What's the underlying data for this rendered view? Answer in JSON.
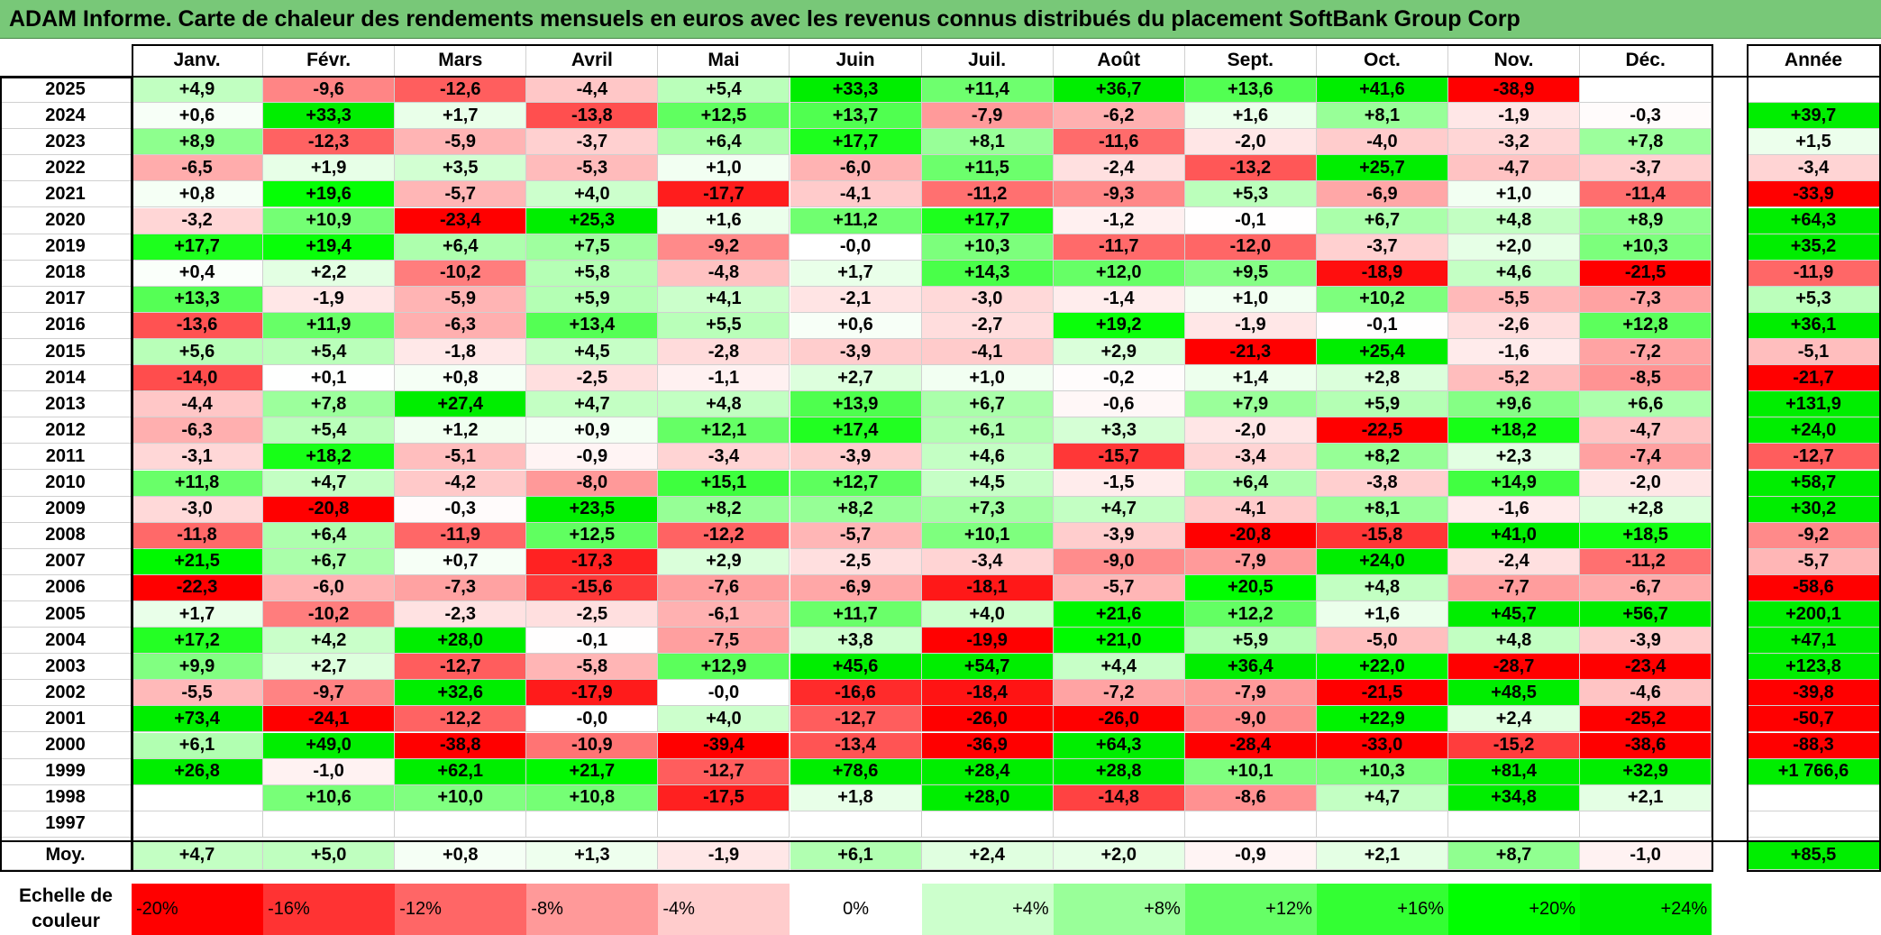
{
  "title": "ADAM Informe. Carte de chaleur des rendements mensuels en euros avec les revenus connus distribués du placement SoftBank Group Corp",
  "chart_data": {
    "type": "heatmap",
    "months": [
      "Janv.",
      "Févr.",
      "Mars",
      "Avril",
      "Mai",
      "Juin",
      "Juil.",
      "Août",
      "Sept.",
      "Oct.",
      "Nov.",
      "Déc."
    ],
    "annual_header": "Année",
    "rows": [
      {
        "year": "2025",
        "values": [
          "+4,9",
          "-9,6",
          "-12,6",
          "-4,4",
          "+5,4",
          "+33,3",
          "+11,4",
          "+36,7",
          "+13,6",
          "+41,6",
          "-38,9",
          ""
        ],
        "annual": ""
      },
      {
        "year": "2024",
        "values": [
          "+0,6",
          "+33,3",
          "+1,7",
          "-13,8",
          "+12,5",
          "+13,7",
          "-7,9",
          "-6,2",
          "+1,6",
          "+8,1",
          "-1,9",
          "-0,3"
        ],
        "annual": "+39,7"
      },
      {
        "year": "2023",
        "values": [
          "+8,9",
          "-12,3",
          "-5,9",
          "-3,7",
          "+6,4",
          "+17,7",
          "+8,1",
          "-11,6",
          "-2,0",
          "-4,0",
          "-3,2",
          "+7,8"
        ],
        "annual": "+1,5"
      },
      {
        "year": "2022",
        "values": [
          "-6,5",
          "+1,9",
          "+3,5",
          "-5,3",
          "+1,0",
          "-6,0",
          "+11,5",
          "-2,4",
          "-13,2",
          "+25,7",
          "-4,7",
          "-3,7"
        ],
        "annual": "-3,4"
      },
      {
        "year": "2021",
        "values": [
          "+0,8",
          "+19,6",
          "-5,7",
          "+4,0",
          "-17,7",
          "-4,1",
          "-11,2",
          "-9,3",
          "+5,3",
          "-6,9",
          "+1,0",
          "-11,4"
        ],
        "annual": "-33,9"
      },
      {
        "year": "2020",
        "values": [
          "-3,2",
          "+10,9",
          "-23,4",
          "+25,3",
          "+1,6",
          "+11,2",
          "+17,7",
          "-1,2",
          "-0,1",
          "+6,7",
          "+4,8",
          "+8,9"
        ],
        "annual": "+64,3"
      },
      {
        "year": "2019",
        "values": [
          "+17,7",
          "+19,4",
          "+6,4",
          "+7,5",
          "-9,2",
          "-0,0",
          "+10,3",
          "-11,7",
          "-12,0",
          "-3,7",
          "+2,0",
          "+10,3"
        ],
        "annual": "+35,2"
      },
      {
        "year": "2018",
        "values": [
          "+0,4",
          "+2,2",
          "-10,2",
          "+5,8",
          "-4,8",
          "+1,7",
          "+14,3",
          "+12,0",
          "+9,5",
          "-18,9",
          "+4,6",
          "-21,5"
        ],
        "annual": "-11,9"
      },
      {
        "year": "2017",
        "values": [
          "+13,3",
          "-1,9",
          "-5,9",
          "+5,9",
          "+4,1",
          "-2,1",
          "-3,0",
          "-1,4",
          "+1,0",
          "+10,2",
          "-5,5",
          "-7,3"
        ],
        "annual": "+5,3"
      },
      {
        "year": "2016",
        "values": [
          "-13,6",
          "+11,9",
          "-6,3",
          "+13,4",
          "+5,5",
          "+0,6",
          "-2,7",
          "+19,2",
          "-1,9",
          "-0,1",
          "-2,6",
          "+12,8"
        ],
        "annual": "+36,1"
      },
      {
        "year": "2015",
        "values": [
          "+5,6",
          "+5,4",
          "-1,8",
          "+4,5",
          "-2,8",
          "-3,9",
          "-4,1",
          "+2,9",
          "-21,3",
          "+25,4",
          "-1,6",
          "-7,2"
        ],
        "annual": "-5,1"
      },
      {
        "year": "2014",
        "values": [
          "-14,0",
          "+0,1",
          "+0,8",
          "-2,5",
          "-1,1",
          "+2,7",
          "+1,0",
          "-0,2",
          "+1,4",
          "+2,8",
          "-5,2",
          "-8,5"
        ],
        "annual": "-21,7"
      },
      {
        "year": "2013",
        "values": [
          "-4,4",
          "+7,8",
          "+27,4",
          "+4,7",
          "+4,8",
          "+13,9",
          "+6,7",
          "-0,6",
          "+7,9",
          "+5,9",
          "+9,6",
          "+6,6"
        ],
        "annual": "+131,9"
      },
      {
        "year": "2012",
        "values": [
          "-6,3",
          "+5,4",
          "+1,2",
          "+0,9",
          "+12,1",
          "+17,4",
          "+6,1",
          "+3,3",
          "-2,0",
          "-22,5",
          "+18,2",
          "-4,7"
        ],
        "annual": "+24,0"
      },
      {
        "year": "2011",
        "values": [
          "-3,1",
          "+18,2",
          "-5,1",
          "-0,9",
          "-3,4",
          "-3,9",
          "+4,6",
          "-15,7",
          "-3,4",
          "+8,2",
          "+2,3",
          "-7,4"
        ],
        "annual": "-12,7"
      },
      {
        "year": "2010",
        "values": [
          "+11,8",
          "+4,7",
          "-4,2",
          "-8,0",
          "+15,1",
          "+12,7",
          "+4,5",
          "-1,5",
          "+6,4",
          "-3,8",
          "+14,9",
          "-2,0"
        ],
        "annual": "+58,7"
      },
      {
        "year": "2009",
        "values": [
          "-3,0",
          "-20,8",
          "-0,3",
          "+23,5",
          "+8,2",
          "+8,2",
          "+7,3",
          "+4,7",
          "-4,1",
          "+8,1",
          "-1,6",
          "+2,8"
        ],
        "annual": "+30,2"
      },
      {
        "year": "2008",
        "values": [
          "-11,8",
          "+6,4",
          "-11,9",
          "+12,5",
          "-12,2",
          "-5,7",
          "+10,1",
          "-3,9",
          "-20,8",
          "-15,8",
          "+41,0",
          "+18,5"
        ],
        "annual": "-9,2"
      },
      {
        "year": "2007",
        "values": [
          "+21,5",
          "+6,7",
          "+0,7",
          "-17,3",
          "+2,9",
          "-2,5",
          "-3,4",
          "-9,0",
          "-7,9",
          "+24,0",
          "-2,4",
          "-11,2"
        ],
        "annual": "-5,7"
      },
      {
        "year": "2006",
        "values": [
          "-22,3",
          "-6,0",
          "-7,3",
          "-15,6",
          "-7,6",
          "-6,9",
          "-18,1",
          "-5,7",
          "+20,5",
          "+4,8",
          "-7,7",
          "-6,7"
        ],
        "annual": "-58,6"
      },
      {
        "year": "2005",
        "values": [
          "+1,7",
          "-10,2",
          "-2,3",
          "-2,5",
          "-6,1",
          "+11,7",
          "+4,0",
          "+21,6",
          "+12,2",
          "+1,6",
          "+45,7",
          "+56,7"
        ],
        "annual": "+200,1"
      },
      {
        "year": "2004",
        "values": [
          "+17,2",
          "+4,2",
          "+28,0",
          "-0,1",
          "-7,5",
          "+3,8",
          "-19,9",
          "+21,0",
          "+5,9",
          "-5,0",
          "+4,8",
          "-3,9"
        ],
        "annual": "+47,1"
      },
      {
        "year": "2003",
        "values": [
          "+9,9",
          "+2,7",
          "-12,7",
          "-5,8",
          "+12,9",
          "+45,6",
          "+54,7",
          "+4,4",
          "+36,4",
          "+22,0",
          "-28,7",
          "-23,4"
        ],
        "annual": "+123,8"
      },
      {
        "year": "2002",
        "values": [
          "-5,5",
          "-9,7",
          "+32,6",
          "-17,9",
          "-0,0",
          "-16,6",
          "-18,4",
          "-7,2",
          "-7,9",
          "-21,5",
          "+48,5",
          "-4,6"
        ],
        "annual": "-39,8"
      },
      {
        "year": "2001",
        "values": [
          "+73,4",
          "-24,1",
          "-12,2",
          "-0,0",
          "+4,0",
          "-12,7",
          "-26,0",
          "-26,0",
          "-9,0",
          "+22,9",
          "+2,4",
          "-25,2"
        ],
        "annual": "-50,7"
      },
      {
        "year": "2000",
        "values": [
          "+6,1",
          "+49,0",
          "-38,8",
          "-10,9",
          "-39,4",
          "-13,4",
          "-36,9",
          "+64,3",
          "-28,4",
          "-33,0",
          "-15,2",
          "-38,6"
        ],
        "annual": "-88,3"
      },
      {
        "year": "1999",
        "values": [
          "+26,8",
          "-1,0",
          "+62,1",
          "+21,7",
          "-12,7",
          "+78,6",
          "+28,4",
          "+28,8",
          "+10,1",
          "+10,3",
          "+81,4",
          "+32,9"
        ],
        "annual": "+1 766,6"
      },
      {
        "year": "1998",
        "values": [
          "",
          "+10,6",
          "+10,0",
          "+10,8",
          "-17,5",
          "+1,8",
          "+28,0",
          "-14,8",
          "-8,6",
          "+4,7",
          "+34,8",
          "+2,1"
        ],
        "annual": ""
      },
      {
        "year": "1997",
        "values": [
          "",
          "",
          "",
          "",
          "",
          "",
          "",
          "",
          "",
          "",
          "",
          ""
        ],
        "annual": ""
      }
    ],
    "average": {
      "label": "Moy.",
      "values": [
        "+4,7",
        "+5,0",
        "+0,8",
        "+1,3",
        "-1,9",
        "+6,1",
        "+2,4",
        "+2,0",
        "-0,9",
        "+2,1",
        "+8,7",
        "-1,0"
      ],
      "annual": "+85,5"
    },
    "color_scale": {
      "label": "Echelle de couleur",
      "stops": [
        {
          "label": "-20%",
          "value": -20,
          "color": "#ff0000"
        },
        {
          "label": "-16%",
          "value": -16,
          "color": "#ff3333"
        },
        {
          "label": "-12%",
          "value": -12,
          "color": "#ff6666"
        },
        {
          "label": "-8%",
          "value": -8,
          "color": "#ff9999"
        },
        {
          "label": "-4%",
          "value": -4,
          "color": "#ffcccc"
        },
        {
          "label": "0%",
          "value": 0,
          "color": "#ffffff"
        },
        {
          "label": "+4%",
          "value": 4,
          "color": "#ccffcc"
        },
        {
          "label": "+8%",
          "value": 8,
          "color": "#99ff99"
        },
        {
          "label": "+12%",
          "value": 12,
          "color": "#66ff66"
        },
        {
          "label": "+16%",
          "value": 16,
          "color": "#33ff33"
        },
        {
          "label": "+20%",
          "value": 20,
          "color": "#00ff00"
        },
        {
          "label": "+24%",
          "value": 24,
          "color": "#00ee00"
        }
      ]
    }
  }
}
